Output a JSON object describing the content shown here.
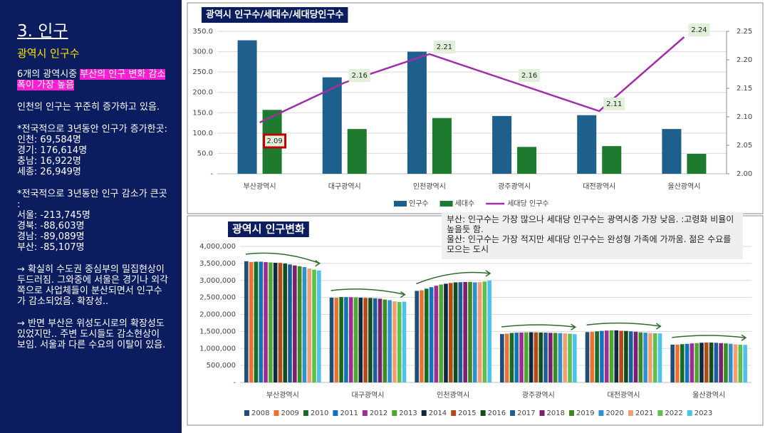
{
  "sidebar": {
    "title": "3. 인구",
    "subtitle": "광역시 인구수",
    "intro": {
      "text": "6개의 광역시중 ",
      "highlight": "부산의 인구 변화 감소 폭이 가장 높음"
    },
    "note": "인천의 인구는 꾸준히 증가하고 있음.",
    "increase": {
      "heading": "*전국적으로 3년동안 인구가 증가한곳:",
      "items": [
        "인천: 69,584명",
        "경기: 176,614명",
        "충남: 16,922명",
        "세종: 26,949명"
      ]
    },
    "decrease": {
      "heading": "*전국적으로 3년동안 인구 감소가 큰곳 :",
      "items": [
        "서울: -213,745명",
        "경북: -88,603명",
        "경남: -89,089명",
        "부산: -85,107명"
      ]
    },
    "remarks": [
      "→ 확실히 수도권 중심부의 밀집현상이 두드러짐. 그와중에 서울은 경기나 외각쪽으로 사업체들이 분산되면서 인구수가 감소되었음. 확장성..",
      "→ 반면 부산은 위성도시로의 확장성도 있었지만.. 주변 도시들도 감소현상이 보임. 서울과 다른 수요의 이탈이 있음."
    ]
  },
  "chart_data": [
    {
      "type": "bar",
      "title": "광역시 인구수/세대수/세대당인구수",
      "categories": [
        "부산광역시",
        "대구광역시",
        "인천광역시",
        "광주광역시",
        "대전광역시",
        "울산광역시"
      ],
      "series": [
        {
          "name": "인구수",
          "color": "#1f5f8b",
          "values": [
            328,
            237,
            300,
            142,
            144,
            110
          ]
        },
        {
          "name": "세대수",
          "color": "#1e7a2e",
          "values": [
            157,
            110,
            137,
            66,
            68,
            49
          ]
        },
        {
          "name": "세대당 인구수",
          "color": "#a12ea8",
          "type": "line",
          "axis": "y2",
          "values": [
            2.09,
            2.16,
            2.21,
            2.16,
            2.11,
            2.24
          ]
        }
      ],
      "ylim": [
        0,
        350
      ],
      "yticks": [
        {
          "value": 0,
          "label": "-"
        },
        {
          "value": 50,
          "label": "50.0"
        },
        {
          "value": 100,
          "label": "100.0"
        },
        {
          "value": 150,
          "label": "150.0"
        },
        {
          "value": 200,
          "label": "200.0"
        },
        {
          "value": 250,
          "label": "250.0"
        },
        {
          "value": 300,
          "label": "300.0"
        },
        {
          "value": 350,
          "label": "350.0"
        }
      ],
      "y2lim": [
        2,
        2.25
      ],
      "y2ticks": [
        {
          "value": 2,
          "label": "2.00"
        },
        2.05,
        {
          "value": 2.1,
          "label": "2.10"
        },
        2.15,
        {
          "value": 2.2,
          "label": "2.20"
        },
        2.25
      ],
      "grid": true,
      "legend": "bottom",
      "highlighted_point": 0
    },
    {
      "type": "bar",
      "title": "광역시 인구변화",
      "annotations": [
        "부산: 인구수는 가장 많으나 세대당 인구수는 광역시중 가장 낮음. :고령화 비율이 높을듯 함.",
        "울산: 인구수는 가장 적지만 세대당 인구수는 완성형 가족에 가까움. 젊은 수요를 모으는 도시"
      ],
      "categories": [
        "부산광역시",
        "대구광역시",
        "인천광역시",
        "광주광역시",
        "대전광역시",
        "울산광역시"
      ],
      "series": [
        {
          "name": "2008",
          "color": "#1f4e79",
          "values": [
            3564000,
            2493000,
            2693000,
            1423000,
            1481000,
            1112000
          ]
        },
        {
          "name": "2009",
          "color": "#e97132",
          "values": [
            3543000,
            2489000,
            2710000,
            1433000,
            1484000,
            1114000
          ]
        },
        {
          "name": "2010",
          "color": "#196b24",
          "values": [
            3551000,
            2511000,
            2758000,
            1455000,
            1502000,
            1126000
          ]
        },
        {
          "name": "2011",
          "color": "#0f75b8",
          "values": [
            3551000,
            2508000,
            2801000,
            1464000,
            1516000,
            1135000
          ]
        },
        {
          "name": "2012",
          "color": "#a02b93",
          "values": [
            3538000,
            2506000,
            2844000,
            1469000,
            1525000,
            1148000
          ]
        },
        {
          "name": "2013",
          "color": "#4ea72e",
          "values": [
            3528000,
            2502000,
            2880000,
            1473000,
            1533000,
            1156000
          ]
        },
        {
          "name": "2014",
          "color": "#0e2841",
          "values": [
            3519000,
            2493000,
            2903000,
            1476000,
            1532000,
            1166000
          ]
        },
        {
          "name": "2015",
          "color": "#b04a17",
          "values": [
            3513000,
            2487000,
            2925000,
            1473000,
            1518000,
            1173000
          ]
        },
        {
          "name": "2016",
          "color": "#124d1b",
          "values": [
            3498000,
            2484000,
            2943000,
            1469000,
            1514000,
            1172000
          ]
        },
        {
          "name": "2017",
          "color": "#1b5e9a",
          "values": [
            3470000,
            2475000,
            2948000,
            1464000,
            1502000,
            1165000
          ]
        },
        {
          "name": "2018",
          "color": "#7a206f",
          "values": [
            3441000,
            2462000,
            2954000,
            1459000,
            1490000,
            1155000
          ]
        },
        {
          "name": "2019",
          "color": "#3b8a22",
          "values": [
            3414000,
            2438000,
            2957000,
            1456000,
            1474000,
            1148000
          ]
        },
        {
          "name": "2020",
          "color": "#2f8fd0",
          "values": [
            3392000,
            2419000,
            2942000,
            1450000,
            1463000,
            1136000
          ]
        },
        {
          "name": "2021",
          "color": "#f0a070",
          "values": [
            3350000,
            2385000,
            2948000,
            1441000,
            1453000,
            1121000
          ]
        },
        {
          "name": "2022",
          "color": "#5fbf4a",
          "values": [
            3317000,
            2364000,
            2968000,
            1432000,
            1446000,
            1110000
          ]
        },
        {
          "name": "2023",
          "color": "#4cc4ea",
          "values": [
            3293000,
            2375000,
            2998000,
            1419000,
            1442000,
            1104000
          ]
        }
      ],
      "ylim": [
        0,
        4000000
      ],
      "yticks": [
        {
          "value": 0,
          "label": "-"
        },
        {
          "value": 500000,
          "label": "500,000"
        },
        {
          "value": 1000000,
          "label": "1,000,000"
        },
        {
          "value": 1500000,
          "label": "1,500,000"
        },
        {
          "value": 2000000,
          "label": "2,000,000"
        },
        {
          "value": 2500000,
          "label": "2,500,000"
        },
        {
          "value": 3000000,
          "label": "3,000,000"
        },
        {
          "value": 3500000,
          "label": "3,500,000"
        },
        {
          "value": 4000000,
          "label": "4,000,000"
        }
      ],
      "grid": true,
      "legend": "bottom"
    }
  ]
}
